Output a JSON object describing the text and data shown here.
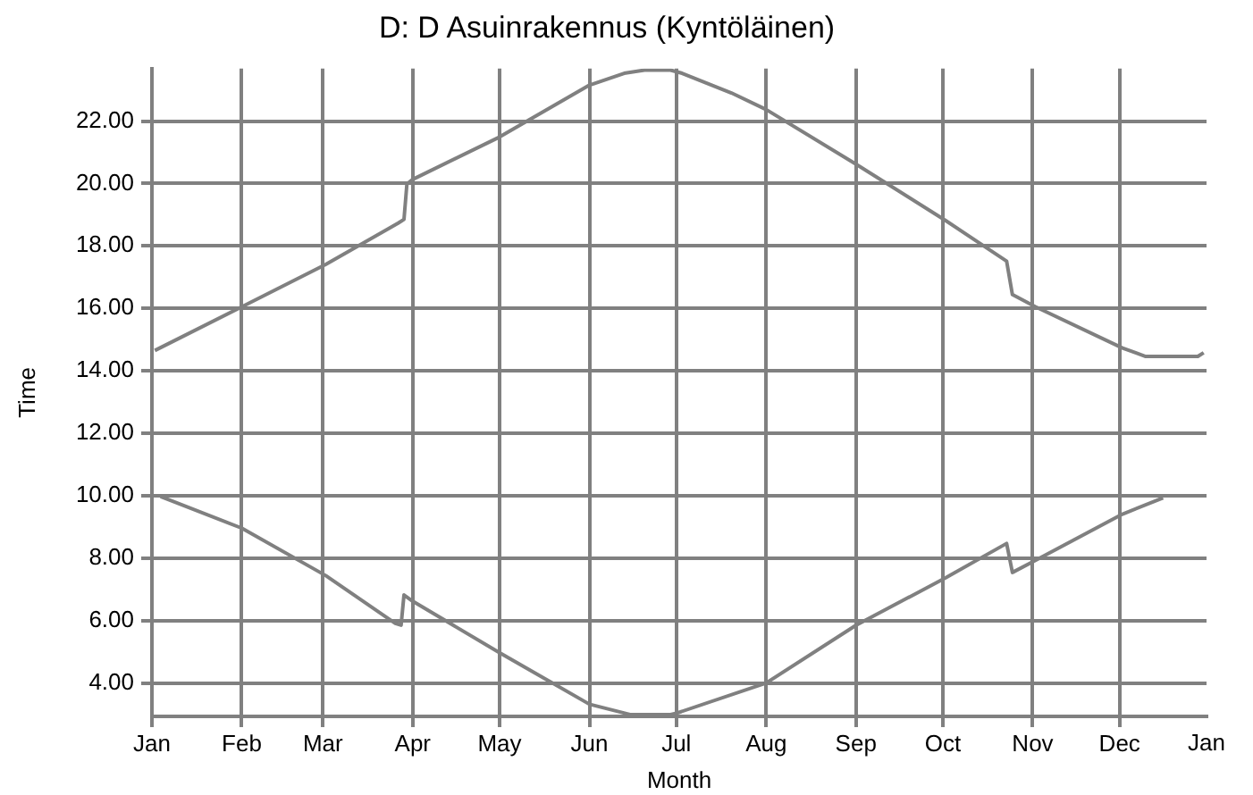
{
  "chart_data": {
    "type": "line",
    "title": "D: D Asuinrakennus (Kyntöläinen)",
    "xlabel": "Month",
    "ylabel": "Time",
    "xlim": [
      "--01-01",
      "--12-31"
    ],
    "xticks": [
      {
        "value": "--01-01",
        "label": "Jan"
      },
      {
        "value": "--02-01",
        "label": "Feb"
      },
      {
        "value": "--03-01",
        "label": "Mar"
      },
      {
        "value": "--04-01",
        "label": "Apr"
      },
      {
        "value": "--05-01",
        "label": "May"
      },
      {
        "value": "--06-01",
        "label": "Jun"
      },
      {
        "value": "--07-01",
        "label": "Jul"
      },
      {
        "value": "--08-01",
        "label": "Aug"
      },
      {
        "value": "--09-01",
        "label": "Sep"
      },
      {
        "value": "--10-01",
        "label": "Oct"
      },
      {
        "value": "--11-01",
        "label": "Nov"
      },
      {
        "value": "--12-01",
        "label": "Dec"
      }
    ],
    "annotations": [
      "Jan"
    ],
    "ylim": [
      2.93,
      23.68
    ],
    "yticks": [
      {
        "value": 4,
        "label": "4.00"
      },
      {
        "value": 6,
        "label": "6.00"
      },
      {
        "value": 8,
        "label": "8.00"
      },
      {
        "value": 10,
        "label": "10.00"
      },
      {
        "value": 12,
        "label": "12.00"
      },
      {
        "value": 14,
        "label": "14.00"
      },
      {
        "value": 16,
        "label": "16.00"
      },
      {
        "value": 18,
        "label": "18.00"
      },
      {
        "value": 20,
        "label": "20.00"
      },
      {
        "value": 22,
        "label": "22.00"
      }
    ],
    "grid": true,
    "legend": false,
    "marker": "none",
    "line_style": "solid",
    "series": [
      {
        "color": "#808080",
        "x": [
          "--01-02",
          "--02-01",
          "--03-02",
          "--03-27",
          "--03-29",
          "--03-30",
          "--04-01",
          "--05-01",
          "--06-01",
          "--06-13",
          "--06-20",
          "--06-29",
          "--07-03",
          "--07-20",
          "--08-01",
          "--09-01",
          "--10-02",
          "--10-23",
          "--10-25",
          "--11-02",
          "--12-02",
          "--12-10",
          "--12-28",
          "--12-30"
        ],
        "values": [
          14.65,
          16.05,
          17.41,
          18.73,
          18.85,
          19.98,
          20.13,
          21.49,
          23.15,
          23.53,
          23.63,
          23.63,
          23.53,
          22.9,
          22.37,
          20.62,
          18.81,
          17.51,
          16.44,
          16.05,
          14.73,
          14.46,
          14.46,
          14.58
        ]
      },
      {
        "color": "#808080",
        "x": [
          "--01-04",
          "--02-01",
          "--03-02",
          "--03-26",
          "--03-28",
          "--03-29",
          "--04-01",
          "--05-01",
          "--06-01",
          "--06-15",
          "--06-29",
          "--07-01",
          "--08-01",
          "--09-01",
          "--10-02",
          "--10-23",
          "--10-25",
          "--11-02",
          "--12-02",
          "--12-16"
        ],
        "values": [
          9.97,
          8.96,
          7.44,
          5.91,
          5.85,
          6.82,
          6.62,
          4.97,
          3.32,
          2.99,
          2.99,
          3.03,
          4.0,
          5.85,
          7.37,
          8.47,
          7.54,
          7.93,
          9.41,
          9.93
        ]
      }
    ]
  }
}
